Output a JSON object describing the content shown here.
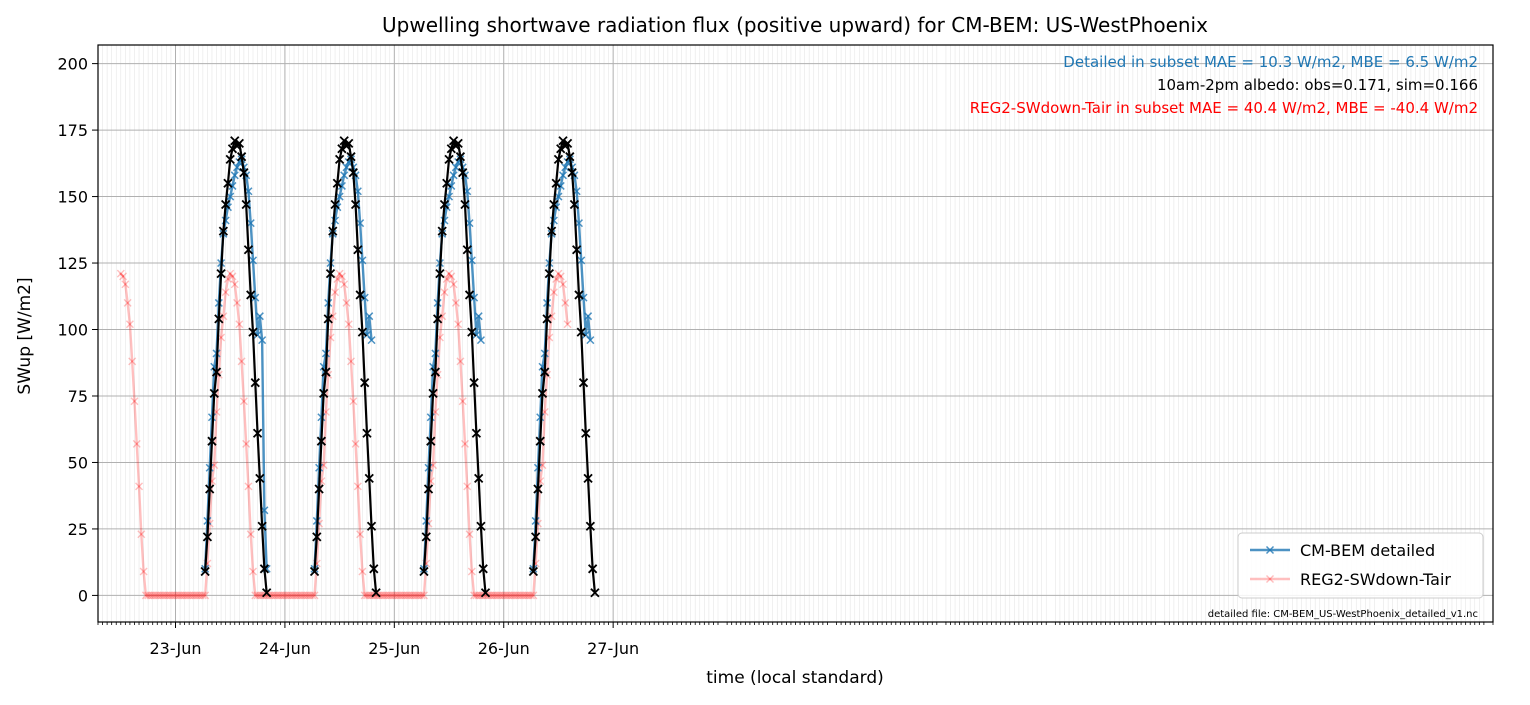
{
  "chart_data": {
    "type": "line",
    "title": "Upwelling shortwave radiation flux (positive upward) for CM-BEM: US-WestPhoenix",
    "xlabel": "time (local standard)",
    "ylabel": "SWup [W/m2]",
    "x_unit": "hours since 23-Jun 00:00 (local standard)",
    "xlim": [
      -17,
      289
    ],
    "ylim": [
      -10,
      207
    ],
    "x_ticks": [
      0,
      24,
      48,
      72,
      96
    ],
    "x_tick_labels": [
      "23-Jun",
      "24-Jun",
      "25-Jun",
      "26-Jun",
      "27-Jun"
    ],
    "y_ticks": [
      0,
      25,
      50,
      75,
      100,
      125,
      150,
      175,
      200
    ],
    "y_tick_labels": [
      "0",
      "25",
      "50",
      "75",
      "100",
      "125",
      "150",
      "175",
      "200"
    ],
    "grid": true,
    "legend_position": "lower-right",
    "annotations": [
      {
        "text": "Detailed in subset MAE = 10.3 W/m2, MBE = 6.5 W/m2",
        "color": "#1f77b4"
      },
      {
        "text": "10am-2pm albedo: obs=0.171, sim=0.166",
        "color": "#000000"
      },
      {
        "text": "REG2-SWdown-Tair in subset MAE = 40.4 W/m2, MBE = -40.4 W/m2",
        "color": "#ff0000"
      }
    ],
    "footnote": "detailed file: CM-BEM_US-WestPhoenix_detailed_v1.nc",
    "series": [
      {
        "name": "CM-BEM detailed",
        "color": "#1f77b4",
        "marker": "x",
        "days": [
          0,
          1,
          2,
          3
        ],
        "shape_hours": [
          6.5,
          7,
          7.5,
          8,
          8.5,
          9,
          9.5,
          10,
          10.5,
          11,
          11.5,
          12,
          12.5,
          13,
          13.5,
          14,
          14.5,
          15,
          15.5,
          16,
          16.5,
          17,
          17.5,
          18,
          18.5,
          19
        ],
        "shape_values": [
          10,
          28,
          48,
          67,
          86,
          91,
          110,
          125,
          136,
          141,
          146,
          150,
          154,
          158,
          161,
          163,
          164,
          161,
          158,
          152,
          140,
          126,
          112,
          98,
          105,
          96
        ],
        "tail_hours": [
          19.5,
          20
        ],
        "tail_values": [
          32,
          10
        ]
      },
      {
        "name": "REG2-SWdown-Tair",
        "color": "#ff0000",
        "marker": "x",
        "opacity": 0.25,
        "start_hour": -12,
        "end_hour": 86,
        "shape_hours": [
          6.5,
          7,
          7.5,
          8,
          8.5,
          9,
          9.5,
          10,
          10.5,
          11,
          11.5,
          12,
          12.5,
          13,
          13.5,
          14,
          14.5,
          15,
          15.5,
          16,
          16.5,
          17,
          17.5,
          18,
          18.5,
          19
        ],
        "shape_values": [
          0,
          12,
          27,
          43,
          49,
          69,
          83,
          97,
          105,
          114,
          119,
          121,
          120,
          117,
          110,
          102,
          88,
          73,
          57,
          41,
          23,
          9,
          0,
          0,
          0,
          0
        ]
      },
      {
        "name": "obs",
        "color": "#000000",
        "marker": "x",
        "shape_hours": [
          6.5,
          7,
          7.5,
          8,
          8.5,
          9,
          9.5,
          10,
          10.5,
          11,
          11.5,
          12,
          12.5,
          13,
          13.5,
          14,
          14.5,
          15,
          15.5,
          16,
          16.5,
          17,
          17.5,
          18,
          18.5,
          19,
          19.5,
          20
        ],
        "shape_values": [
          9,
          22,
          40,
          58,
          76,
          84,
          104,
          121,
          137,
          147,
          155,
          164,
          168,
          171,
          169,
          170,
          165,
          159,
          147,
          130,
          113,
          99,
          80,
          61,
          44,
          26,
          10,
          1
        ]
      }
    ],
    "legend_entries": [
      "CM-BEM detailed",
      "REG2-SWdown-Tair"
    ]
  }
}
